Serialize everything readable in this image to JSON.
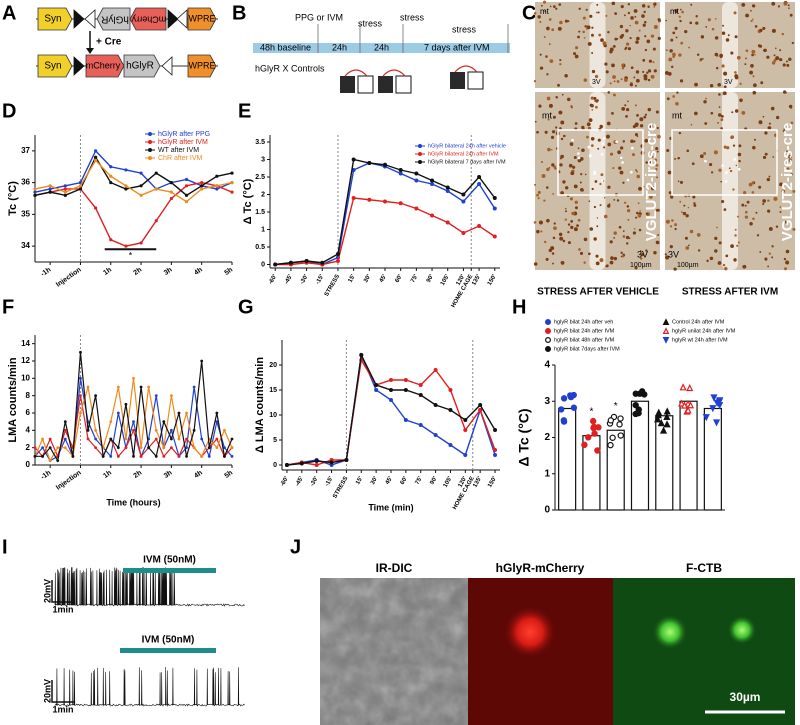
{
  "panel_labels": [
    "A",
    "B",
    "C",
    "D",
    "E",
    "F",
    "G",
    "H",
    "I",
    "J"
  ],
  "schematic": {
    "before": [
      "Syn",
      "hGlyR",
      "mCherry",
      "WPRE"
    ],
    "cre": "+ Cre",
    "after": [
      "Syn",
      "mCherry",
      "hGlyR",
      "WPRE"
    ]
  },
  "timeline": {
    "events": [
      "PPG or IVM",
      "stress",
      "stress",
      "stress"
    ],
    "phases": [
      "48h baseline",
      "24h",
      "24h",
      "7 days after IVM"
    ],
    "groups": "hGlyR X Controls"
  },
  "histology": {
    "top_left": [
      "mt",
      "3V"
    ],
    "top_right": [
      "mt",
      "3V"
    ],
    "bottom_left": [
      "mt",
      "VGLUT2-ires-cre",
      "3V",
      "100µm"
    ],
    "bottom_right": [
      "mt",
      "VGLUT2-ires-cre",
      "3V",
      "100µm"
    ],
    "captions": [
      "STRESS AFTER VEHICLE",
      "STRESS AFTER IVM"
    ]
  },
  "chart_data": [
    {
      "type": "line",
      "ylabel": "Tc (°C)",
      "legend": "upper right",
      "x": [
        -1.5,
        -1,
        -0.5,
        0,
        0.5,
        1,
        1.5,
        2,
        2.5,
        3,
        3.5,
        4,
        4.5,
        5
      ],
      "xlim": [
        -1.5,
        5
      ],
      "ylim": [
        33.5,
        37.5
      ],
      "yticks": [
        34,
        35,
        36,
        37
      ],
      "xticks": [
        {
          "value": -1,
          "label": "-1h"
        },
        {
          "value": 0,
          "label": "Injection"
        },
        {
          "value": 1,
          "label": "1h"
        },
        {
          "value": 2,
          "label": "2h"
        },
        {
          "value": 3,
          "label": "3h"
        },
        {
          "value": 4,
          "label": "4h"
        },
        {
          "value": 5,
          "label": "5h"
        }
      ],
      "vlines": [
        0
      ],
      "annotations": [
        {
          "text": "*",
          "x": [
            0.8,
            2.5
          ],
          "y": 33.9
        }
      ],
      "series": [
        {
          "name": "hGlyR after PPG",
          "color": "#2040d0",
          "values": [
            35.7,
            35.8,
            35.9,
            36.0,
            37.0,
            36.5,
            36.4,
            36.3,
            35.8,
            36.0,
            36.1,
            35.9,
            35.8,
            36.0
          ]
        },
        {
          "name": "hGlyR after IVM",
          "color": "#e02020",
          "values": [
            35.6,
            35.7,
            35.8,
            35.8,
            35.2,
            34.2,
            34.0,
            34.1,
            34.8,
            35.5,
            35.9,
            36.0,
            35.9,
            35.7
          ]
        },
        {
          "name": "WT after IVM",
          "color": "#111111",
          "values": [
            35.6,
            35.7,
            35.6,
            35.8,
            36.8,
            36.0,
            35.8,
            35.9,
            36.3,
            36.0,
            35.6,
            35.9,
            36.2,
            36.3
          ]
        },
        {
          "name": "ChR after IVM",
          "color": "#f08a1c",
          "values": [
            35.8,
            35.9,
            35.7,
            35.9,
            36.7,
            36.2,
            35.9,
            35.6,
            35.8,
            35.7,
            35.4,
            35.8,
            35.9,
            36.0
          ]
        }
      ]
    },
    {
      "type": "line",
      "ylabel": "Δ Tc (°C)",
      "legend": "upper right",
      "x": [
        -60,
        -45,
        -30,
        -15,
        0,
        15,
        30,
        45,
        60,
        75,
        90,
        105,
        120,
        135,
        150
      ],
      "xlim": [
        -65,
        155
      ],
      "ylim": [
        -0.1,
        3.7
      ],
      "yticks": [
        0,
        0.5,
        1,
        1.5,
        2,
        2.5,
        3,
        3.5
      ],
      "xticks": [
        {
          "value": -60,
          "label": "-60'"
        },
        {
          "value": -45,
          "label": "-45'"
        },
        {
          "value": -30,
          "label": "-30'"
        },
        {
          "value": -15,
          "label": "-15'"
        },
        {
          "value": 0,
          "label": "STRESS"
        },
        {
          "value": 15,
          "label": "15'"
        },
        {
          "value": 30,
          "label": "30'"
        },
        {
          "value": 45,
          "label": "45'"
        },
        {
          "value": 60,
          "label": "60'"
        },
        {
          "value": 75,
          "label": "75'"
        },
        {
          "value": 90,
          "label": "90'"
        },
        {
          "value": 105,
          "label": "105'"
        },
        {
          "value": 120,
          "label": "120'"
        },
        {
          "value": 127.5,
          "label": "HOME CAGE"
        },
        {
          "value": 135,
          "label": "135'"
        },
        {
          "value": 150,
          "label": "150'"
        }
      ],
      "vlines": [
        0,
        127.5
      ],
      "series": [
        {
          "name": "hGlyR bilateral 24h after vehicle",
          "color": "#2040d0",
          "values": [
            0,
            0.05,
            0.1,
            0,
            0.2,
            2.7,
            2.9,
            2.8,
            2.6,
            2.4,
            2.3,
            2.1,
            1.8,
            2.3,
            1.6
          ]
        },
        {
          "name": "hGlyR bilateral 24h after IVM",
          "color": "#e02020",
          "values": [
            0,
            0,
            0.05,
            0,
            0.1,
            1.9,
            1.85,
            1.8,
            1.75,
            1.6,
            1.4,
            1.2,
            0.9,
            1.1,
            0.8
          ]
        },
        {
          "name": "hGlyR bilateral 7 days after IVM",
          "color": "#111111",
          "values": [
            0,
            0.05,
            0.1,
            0.05,
            0.3,
            3.0,
            2.9,
            2.85,
            2.7,
            2.6,
            2.4,
            2.2,
            2.0,
            2.5,
            1.9
          ]
        }
      ]
    },
    {
      "type": "line",
      "ylabel": "LMA counts/min",
      "xlabel": "Time (hours)",
      "x": [
        -1.5,
        -1.25,
        -1,
        -0.75,
        -0.5,
        -0.25,
        0,
        0.25,
        0.5,
        0.75,
        1,
        1.25,
        1.5,
        1.75,
        2,
        2.25,
        2.5,
        2.75,
        3,
        3.25,
        3.5,
        3.75,
        4,
        4.25,
        4.5,
        4.75,
        5
      ],
      "xlim": [
        -1.5,
        5
      ],
      "ylim": [
        0,
        15
      ],
      "yticks": [
        0,
        2,
        4,
        6,
        8,
        10,
        12,
        14
      ],
      "xticks": [
        {
          "value": -1,
          "label": "-1h"
        },
        {
          "value": 0,
          "label": "Injection"
        },
        {
          "value": 1,
          "label": "1h"
        },
        {
          "value": 2,
          "label": "2h"
        },
        {
          "value": 3,
          "label": "3h"
        },
        {
          "value": 4,
          "label": "4h"
        },
        {
          "value": 5,
          "label": "5h"
        }
      ],
      "vlines": [
        0
      ],
      "series": [
        {
          "color": "#2040d0",
          "values": [
            1,
            2,
            0.5,
            1,
            3,
            1,
            10,
            5,
            3,
            2,
            1,
            6,
            2,
            5,
            1,
            3,
            8,
            2,
            4,
            1,
            2,
            9,
            3,
            1,
            5,
            2,
            1
          ]
        },
        {
          "color": "#e02020",
          "values": [
            2,
            1,
            3,
            1,
            4,
            2,
            8,
            3,
            2,
            1,
            3,
            1,
            2,
            4,
            1,
            2,
            3,
            1,
            2,
            1,
            3,
            2,
            1,
            2,
            3,
            1,
            2
          ]
        },
        {
          "color": "#f08a1c",
          "values": [
            1,
            3,
            0.5,
            2,
            2,
            1,
            6,
            9,
            4,
            2,
            5,
            9,
            3,
            10,
            2,
            9,
            4,
            2,
            8,
            3,
            6,
            2,
            1,
            3,
            2,
            4,
            2
          ]
        },
        {
          "color": "#111111",
          "values": [
            1,
            1,
            2,
            0.5,
            5,
            1,
            13,
            4,
            8,
            1,
            3,
            2,
            7,
            1,
            9,
            2,
            1,
            5,
            3,
            6,
            1,
            4,
            12,
            2,
            6,
            1,
            3
          ]
        }
      ]
    },
    {
      "type": "line",
      "ylabel": "Δ LMA counts/min",
      "xlabel": "Time (min)",
      "x": [
        -60,
        -45,
        -30,
        -15,
        0,
        15,
        30,
        45,
        60,
        75,
        90,
        105,
        120,
        135,
        150
      ],
      "xlim": [
        -65,
        155
      ],
      "ylim": [
        -1,
        25
      ],
      "yticks": [
        0,
        5,
        10,
        15,
        20
      ],
      "xticks": [
        {
          "value": -60,
          "label": "-60'"
        },
        {
          "value": -45,
          "label": "-45'"
        },
        {
          "value": -30,
          "label": "-30'"
        },
        {
          "value": -15,
          "label": "-15'"
        },
        {
          "value": 0,
          "label": "STRESS"
        },
        {
          "value": 15,
          "label": "15'"
        },
        {
          "value": 30,
          "label": "30'"
        },
        {
          "value": 45,
          "label": "45'"
        },
        {
          "value": 60,
          "label": "60'"
        },
        {
          "value": 75,
          "label": "75'"
        },
        {
          "value": 90,
          "label": "90'"
        },
        {
          "value": 105,
          "label": "105'"
        },
        {
          "value": 120,
          "label": "120'"
        },
        {
          "value": 127.5,
          "label": "HOME CAGE"
        },
        {
          "value": 135,
          "label": "135'"
        },
        {
          "value": 150,
          "label": "150'"
        }
      ],
      "vlines": [
        0,
        127.5
      ],
      "series": [
        {
          "color": "#2040d0",
          "values": [
            0,
            0.5,
            1,
            0,
            1,
            22,
            15,
            13,
            9,
            8,
            6,
            4,
            2,
            11,
            2
          ]
        },
        {
          "color": "#e02020",
          "values": [
            0,
            0.5,
            0,
            1,
            1,
            21,
            16,
            17,
            17,
            16,
            19,
            15,
            7,
            11,
            3
          ]
        },
        {
          "color": "#111111",
          "values": [
            0,
            0.3,
            0.8,
            0.5,
            1,
            22,
            16,
            15,
            15,
            14,
            12,
            11,
            9,
            12,
            7
          ]
        }
      ]
    },
    {
      "type": "bar",
      "ylabel": "Δ Tc (°C)",
      "legend": "top",
      "categories": [
        "hglyR bilat 24h after veh",
        "hglyR bilat 24h after IVM",
        "hglyR bilat 48h after IVM",
        "hglyR bilat 7days after IVM",
        "Control 24h after IVM",
        "hglyR unilat 24h after IVM",
        "hglyR wt 24h after IVM"
      ],
      "values": [
        2.8,
        2.05,
        2.2,
        3.0,
        2.6,
        3.0,
        2.8
      ],
      "colors": [
        "#2040d0",
        "#e02020",
        "#111111",
        "#111111",
        "#111111",
        "#e02020",
        "#2040d0"
      ],
      "markers": [
        "circle",
        "circle",
        "open-circle",
        "circle",
        "triangle",
        "open-triangle",
        "down-triangle"
      ],
      "ylim": [
        0,
        4
      ],
      "yticks": [
        0,
        1,
        2,
        3,
        4
      ],
      "annotations": [
        {
          "text": "*",
          "category": "hglyR bilat 24h after IVM"
        },
        {
          "text": "*",
          "category": "hglyR bilat 48h after IVM"
        }
      ]
    }
  ],
  "traces": [
    {
      "drug": "IVM (50nM)",
      "voltage": "20mV",
      "time": "1min"
    },
    {
      "drug": "IVM (50nM)",
      "voltage": "20mV",
      "time": "1min"
    }
  ],
  "imaging": {
    "channels": [
      "IR-DIC",
      "hGlyR-mCherry",
      "F-CTB"
    ],
    "scale": "30µm"
  }
}
